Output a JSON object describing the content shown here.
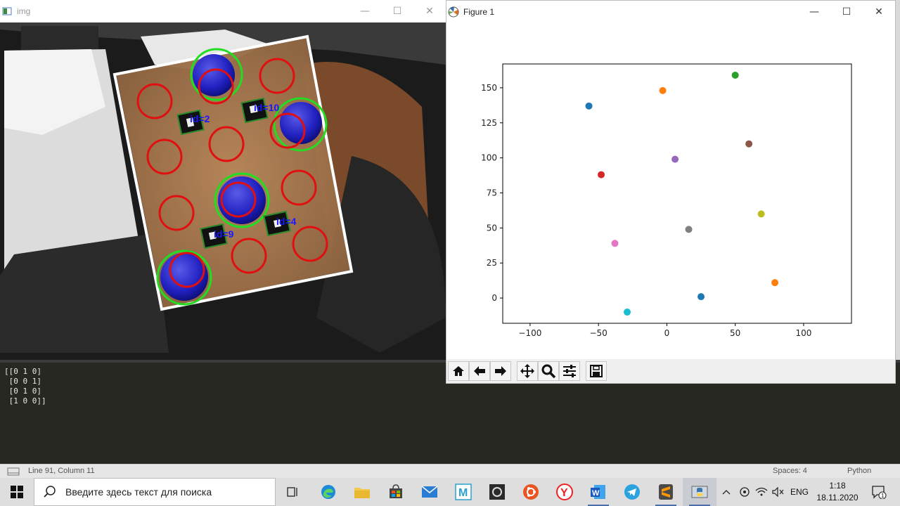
{
  "img_window": {
    "title": "img",
    "marker_labels": [
      "id=2",
      "id=10",
      "id=9",
      "id=4"
    ],
    "controls": [
      "minimize",
      "maximize",
      "close"
    ]
  },
  "figure_window": {
    "title": "Figure 1",
    "controls": [
      "minimize",
      "maximize",
      "close"
    ],
    "toolbar": [
      "home-icon",
      "back-icon",
      "forward-icon",
      "pan-icon",
      "zoom-icon",
      "configure-subplots-icon",
      "save-icon"
    ]
  },
  "chart_data": {
    "type": "scatter",
    "title": "",
    "xlabel": "",
    "ylabel": "",
    "xlim": [
      -120,
      135
    ],
    "ylim": [
      -18,
      167
    ],
    "xticks": [
      -100,
      -50,
      0,
      50,
      100
    ],
    "yticks": [
      0,
      25,
      50,
      75,
      100,
      125,
      150
    ],
    "grid": false,
    "points": [
      {
        "x": -57,
        "y": 137,
        "color": "#1f77b4"
      },
      {
        "x": -3,
        "y": 148,
        "color": "#ff7f0e"
      },
      {
        "x": 50,
        "y": 159,
        "color": "#2ca02c"
      },
      {
        "x": -48,
        "y": 88,
        "color": "#d62728"
      },
      {
        "x": 6,
        "y": 99,
        "color": "#9467bd"
      },
      {
        "x": 60,
        "y": 110,
        "color": "#8c564b"
      },
      {
        "x": -38,
        "y": 39,
        "color": "#e377c2"
      },
      {
        "x": 16,
        "y": 49,
        "color": "#7f7f7f"
      },
      {
        "x": 69,
        "y": 60,
        "color": "#bcbd22"
      },
      {
        "x": -29,
        "y": -10,
        "color": "#17becf"
      },
      {
        "x": 25,
        "y": 1,
        "color": "#1f77b4"
      },
      {
        "x": 79,
        "y": 11,
        "color": "#ff7f0e"
      }
    ]
  },
  "console": {
    "output": "[[0 1 0]\n [0 0 1]\n [0 1 0]\n [1 0 0]]"
  },
  "statusbar": {
    "position": "Line 91, Column 11",
    "spaces": "Spaces: 4",
    "syntax": "Python"
  },
  "taskbar": {
    "search_placeholder": "Введите здесь текст для поиска",
    "language": "ENG",
    "time": "1:18",
    "date": "18.11.2020",
    "notification_count": "1"
  }
}
